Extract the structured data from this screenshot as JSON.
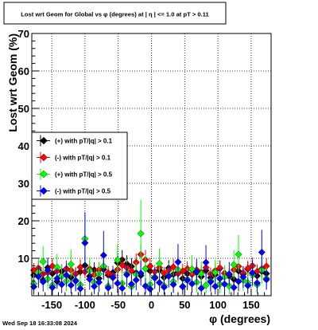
{
  "chart_data": {
    "type": "scatter",
    "title": "Lost wrt Geom for Global vs φ (degrees) at |  η | <= 1.0 at pT > 0.11",
    "xlabel": "φ (degrees)",
    "ylabel": "Lost wrt Geom (%)",
    "xlim": [
      -180,
      180
    ],
    "ylim": [
      0,
      70
    ],
    "x_ticks": [
      "-150",
      "-100",
      "-50",
      "0",
      "50",
      "100",
      "150"
    ],
    "y_ticks": [
      "10",
      "20",
      "30",
      "40",
      "50",
      "60",
      "70"
    ],
    "grid": true,
    "legend_position": "left-middle",
    "x": [
      -177,
      -170,
      -163,
      -156,
      -149,
      -142,
      -135,
      -128,
      -121,
      -114,
      -107,
      -100,
      -93,
      -86,
      -79,
      -72,
      -65,
      -58,
      -51,
      -44,
      -37,
      -30,
      -23,
      -16,
      -9,
      -2,
      5,
      12,
      19,
      26,
      33,
      40,
      47,
      54,
      61,
      68,
      75,
      82,
      89,
      96,
      103,
      110,
      117,
      124,
      131,
      138,
      145,
      152,
      159,
      166,
      173
    ],
    "series": [
      {
        "name": "(+) with pT/|q| > 0.1",
        "color": "#000000",
        "values": [
          5.5,
          6.8,
          4.2,
          7.5,
          5.9,
          3.8,
          6.5,
          7.2,
          4.9,
          5.8,
          6.4,
          8.1,
          5.2,
          6.9,
          4.6,
          7.0,
          5.5,
          6.2,
          8.8,
          9.6,
          8.5,
          7.8,
          6.1,
          5.4,
          7.2,
          6.6,
          5.0,
          6.8,
          4.9,
          7.4,
          5.7,
          6.3,
          4.6,
          5.9,
          7.0,
          6.2,
          5.1,
          6.7,
          4.8,
          5.6,
          7.3,
          6.0,
          5.2,
          4.4,
          6.6,
          5.8,
          7.1,
          6.0,
          5.3,
          6.5,
          5.9
        ],
        "errors": [
          1.6,
          2.0,
          1.4,
          2.1,
          1.8,
          1.3,
          1.9,
          2.1,
          1.5,
          1.7,
          1.9,
          2.3,
          1.6,
          2.0,
          1.5,
          2.0,
          1.7,
          1.8,
          2.4,
          2.6,
          2.3,
          2.2,
          1.8,
          1.7,
          2.0,
          1.9,
          1.5,
          2.0,
          1.5,
          2.1,
          1.7,
          1.9,
          1.5,
          1.8,
          2.0,
          1.8,
          1.6,
          1.9,
          1.5,
          1.7,
          2.1,
          1.8,
          1.6,
          1.4,
          1.9,
          1.7,
          2.0,
          1.8,
          1.6,
          1.9,
          1.8
        ]
      },
      {
        "name": "(-) with pT/|q| > 0.1",
        "color": "#ff0000",
        "values": [
          6.8,
          7.4,
          5.8,
          6.2,
          7.9,
          6.6,
          5.4,
          7.1,
          6.8,
          5.9,
          7.6,
          6.4,
          7.2,
          5.6,
          6.9,
          7.8,
          6.1,
          5.5,
          7.0,
          8.2,
          7.5,
          6.6,
          8.9,
          11.0,
          9.6,
          7.9,
          6.4,
          7.5,
          6.0,
          6.8,
          7.7,
          5.9,
          6.6,
          7.2,
          5.7,
          6.9,
          6.3,
          7.5,
          5.8,
          6.7,
          7.4,
          6.0,
          5.6,
          6.9,
          7.8,
          6.1,
          7.3,
          8.0,
          6.5,
          7.2,
          7.9
        ],
        "errors": [
          1.9,
          2.0,
          1.7,
          1.8,
          2.1,
          1.9,
          1.6,
          2.0,
          1.9,
          1.7,
          2.1,
          1.8,
          2.0,
          1.7,
          1.9,
          2.1,
          1.8,
          1.6,
          2.0,
          2.2,
          2.1,
          1.9,
          2.4,
          2.9,
          2.6,
          2.2,
          1.8,
          2.1,
          1.7,
          1.9,
          2.1,
          1.7,
          1.9,
          2.0,
          1.7,
          1.9,
          1.8,
          2.1,
          1.7,
          1.9,
          2.0,
          1.8,
          1.7,
          1.9,
          2.1,
          1.8,
          2.0,
          2.2,
          1.9,
          2.0,
          2.1
        ]
      },
      {
        "name": "(+) with pT/|q| > 0.5",
        "color": "#00ff00",
        "values": [
          3.2,
          6.4,
          9.1,
          4.5,
          2.8,
          7.6,
          5.2,
          3.9,
          8.4,
          4.1,
          2.9,
          15.2,
          6.7,
          3.5,
          5.8,
          7.9,
          2.6,
          4.8,
          9.5,
          3.3,
          6.1,
          2.4,
          5.7,
          16.6,
          7.2,
          3.0,
          4.9,
          8.6,
          2.7,
          5.5,
          3.8,
          6.9,
          2.5,
          4.4,
          7.1,
          3.6,
          5.9,
          2.8,
          4.0,
          6.2,
          3.1,
          5.0,
          2.6,
          8.3,
          11.0,
          4.2,
          3.4,
          5.6,
          2.9,
          6.8,
          4.6
        ],
        "errors": [
          2.5,
          3.4,
          4.1,
          2.9,
          2.3,
          3.6,
          3.1,
          2.7,
          3.9,
          2.8,
          2.4,
          6.5,
          3.5,
          2.6,
          3.2,
          3.8,
          2.2,
          3.0,
          4.2,
          2.6,
          3.4,
          2.1,
          3.2,
          9.0,
          3.7,
          2.4,
          3.0,
          4.0,
          2.3,
          3.2,
          2.7,
          3.6,
          2.2,
          2.9,
          3.7,
          2.7,
          3.3,
          2.3,
          2.8,
          3.4,
          2.5,
          3.1,
          2.2,
          3.9,
          5.2,
          2.9,
          2.6,
          3.3,
          2.4,
          3.6,
          3.0
        ]
      },
      {
        "name": "(-) with pT/|q| > 0.5",
        "color": "#0000ff",
        "values": [
          2.4,
          5.1,
          3.7,
          6.8,
          2.2,
          4.6,
          3.0,
          5.5,
          2.8,
          3.9,
          1.9,
          14.1,
          4.4,
          2.5,
          3.6,
          10.8,
          2.1,
          4.9,
          3.3,
          2.0,
          5.6,
          3.1,
          4.2,
          6.0,
          2.6,
          1.8,
          4.7,
          3.5,
          2.3,
          5.2,
          3.0,
          9.0,
          2.4,
          4.1,
          3.2,
          6.4,
          2.0,
          8.9,
          3.7,
          2.5,
          4.6,
          3.1,
          5.8,
          2.2,
          3.8,
          5.0,
          2.7,
          6.1,
          3.4,
          11.6,
          4.3
        ],
        "errors": [
          2.1,
          3.0,
          2.6,
          3.4,
          2.0,
          2.8,
          2.3,
          3.1,
          2.2,
          2.7,
          1.9,
          8.2,
          2.8,
          2.1,
          2.6,
          6.5,
          1.9,
          2.9,
          2.5,
          1.8,
          3.2,
          2.4,
          2.7,
          3.3,
          2.1,
          1.8,
          2.9,
          2.5,
          2.0,
          3.0,
          2.3,
          4.8,
          2.1,
          2.6,
          2.4,
          3.4,
          1.8,
          4.6,
          2.6,
          2.1,
          2.8,
          2.4,
          3.2,
          2.0,
          2.6,
          2.9,
          2.2,
          3.3,
          2.5,
          6.0,
          2.7
        ]
      }
    ]
  },
  "footer": {
    "timestamp": "Wed Sep 18 16:33:08 2024"
  }
}
